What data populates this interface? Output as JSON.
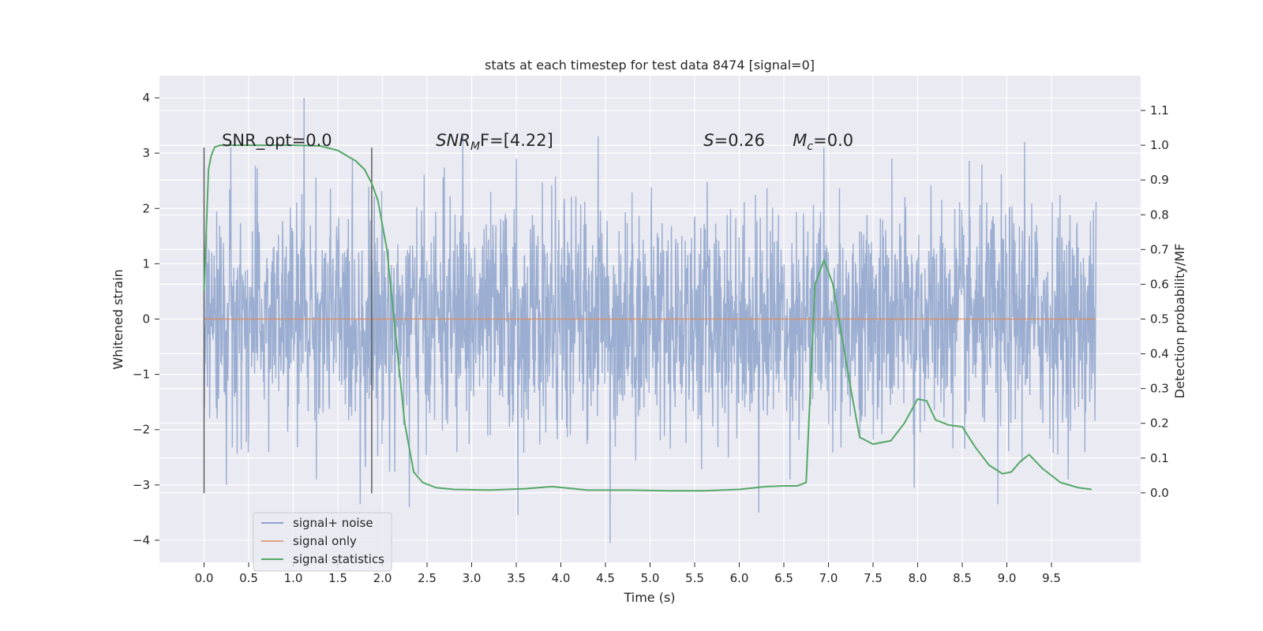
{
  "chart_data": {
    "type": "line",
    "title": "stats at each timestep for test data 8474 [signal=0]",
    "xlabel": "Time (s)",
    "ylabel": "Whitened strain",
    "y2label": "Detection probability/MF",
    "xlim": [
      -0.5,
      10.5
    ],
    "ylim": [
      -4.4,
      4.4
    ],
    "y2lim": [
      -0.2,
      1.2
    ],
    "x_ticks": [
      0.0,
      0.5,
      1.0,
      1.5,
      2.0,
      2.5,
      3.0,
      3.5,
      4.0,
      4.5,
      5.0,
      5.5,
      6.0,
      6.5,
      7.0,
      7.5,
      8.0,
      8.5,
      9.0,
      9.5
    ],
    "x_tick_labels": [
      "0.0",
      "0.5",
      "1.0",
      "1.5",
      "2.0",
      "2.5",
      "3.0",
      "3.5",
      "4.0",
      "4.5",
      "5.0",
      "5.5",
      "6.0",
      "6.5",
      "7.0",
      "7.5",
      "8.0",
      "8.5",
      "9.0",
      "9.5"
    ],
    "y_ticks": [
      4,
      3,
      2,
      1,
      0,
      -1,
      -2,
      -3,
      -4
    ],
    "y_tick_labels": [
      "4",
      "3",
      "2",
      "1",
      "0",
      "−1",
      "−2",
      "−3",
      "−4"
    ],
    "y2_ticks": [
      1.1,
      1.0,
      0.9,
      0.8,
      0.7,
      0.6,
      0.5,
      0.4,
      0.3,
      0.2,
      0.1,
      0.0
    ],
    "y2_tick_labels": [
      "1.1",
      "1.0",
      "0.9",
      "0.8",
      "0.7",
      "0.6",
      "0.5",
      "0.4",
      "0.3",
      "0.2",
      "0.1",
      "0.0"
    ],
    "grid": true,
    "legend_position": "lower-left",
    "colors": {
      "plot_bg": "#eaeaf2",
      "noise": "#4c72b0",
      "signal": "#dd8452",
      "stats": "#55a868",
      "vline": "#555555"
    },
    "series": [
      {
        "name": "signal+ noise",
        "style": "dense-noise",
        "x_range": [
          0.0,
          10.0
        ],
        "typical_envelope": [
          -1.3,
          1.3
        ],
        "peaks": [
          [
            1.12,
            4.0
          ],
          [
            0.3,
            3.1
          ],
          [
            2.9,
            3.3
          ],
          [
            4.42,
            3.3
          ],
          [
            9.2,
            3.2
          ],
          [
            6.95,
            3.1
          ],
          [
            3.5,
            2.9
          ]
        ],
        "troughs": [
          [
            4.55,
            -4.05
          ],
          [
            1.75,
            -3.35
          ],
          [
            3.52,
            -3.55
          ],
          [
            6.22,
            -3.5
          ],
          [
            2.3,
            -3.4
          ],
          [
            8.9,
            -3.35
          ],
          [
            7.96,
            -3.05
          ],
          [
            0.25,
            -3.0
          ]
        ]
      },
      {
        "name": "signal only",
        "x": [
          0.0,
          10.0
        ],
        "y": [
          0.0,
          0.0
        ]
      },
      {
        "name": "signal statistics",
        "axis": "right",
        "x": [
          0.0,
          0.02,
          0.05,
          0.08,
          0.12,
          0.18,
          0.3,
          0.5,
          1.0,
          1.3,
          1.5,
          1.6,
          1.7,
          1.8,
          1.88,
          1.95,
          2.05,
          2.15,
          2.25,
          2.35,
          2.45,
          2.6,
          2.8,
          3.2,
          3.6,
          3.9,
          4.3,
          4.8,
          5.2,
          5.6,
          6.0,
          6.3,
          6.5,
          6.65,
          6.75,
          6.85,
          6.95,
          7.05,
          7.15,
          7.25,
          7.35,
          7.5,
          7.7,
          7.85,
          8.0,
          8.1,
          8.2,
          8.35,
          8.5,
          8.65,
          8.8,
          8.95,
          9.05,
          9.15,
          9.25,
          9.4,
          9.6,
          9.8,
          9.95
        ],
        "y": [
          0.58,
          0.72,
          0.93,
          0.97,
          0.995,
          1.0,
          1.0,
          1.0,
          1.0,
          0.998,
          0.985,
          0.97,
          0.955,
          0.93,
          0.89,
          0.84,
          0.7,
          0.45,
          0.2,
          0.06,
          0.03,
          0.015,
          0.01,
          0.008,
          0.012,
          0.018,
          0.008,
          0.008,
          0.006,
          0.006,
          0.01,
          0.018,
          0.02,
          0.02,
          0.03,
          0.6,
          0.67,
          0.6,
          0.45,
          0.3,
          0.16,
          0.14,
          0.15,
          0.2,
          0.27,
          0.265,
          0.21,
          0.195,
          0.19,
          0.13,
          0.08,
          0.055,
          0.06,
          0.09,
          0.11,
          0.07,
          0.03,
          0.015,
          0.01
        ]
      }
    ],
    "vlines": [
      0.0,
      1.88
    ],
    "annotations": [
      {
        "text": "SNR_opt=0.0",
        "x": 0.2,
        "y": 3.1
      },
      {
        "text_main": "SNR",
        "text_sub": "M",
        "text_tail": "F=[4.22]",
        "x": 2.6,
        "y": 3.1
      },
      {
        "text_main": "S",
        "text_tail": "=0.26",
        "x": 5.6,
        "y": 3.1
      },
      {
        "text_main": "M",
        "text_sub": "c",
        "text_tail": "=0.0",
        "x": 6.6,
        "y": 3.1
      }
    ]
  }
}
